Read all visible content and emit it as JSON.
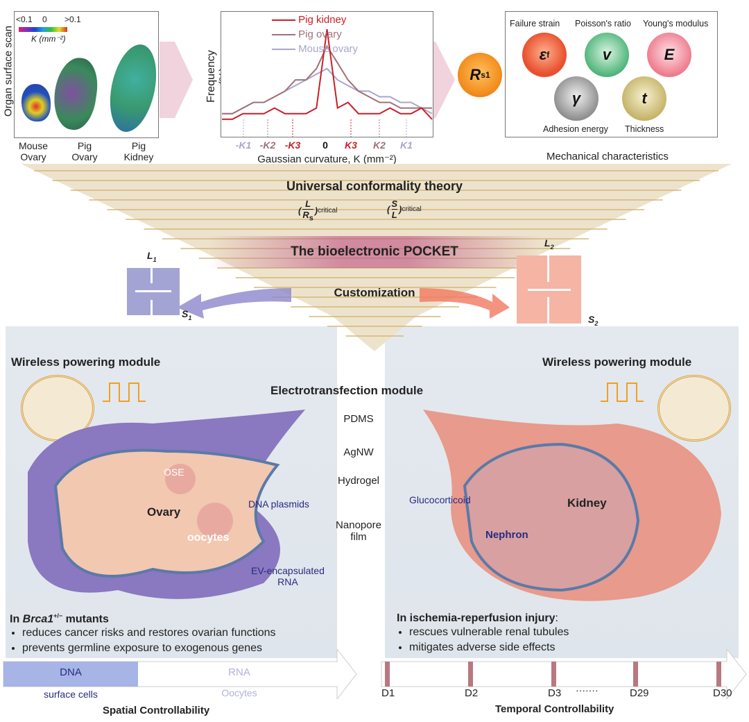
{
  "scan_panel": {
    "axis_label": "Organ surface scan",
    "colorbar": {
      "min": "<0.1",
      "mid": "0",
      "max": ">0.1",
      "unit": "K (mm⁻²)"
    },
    "organs": [
      "Mouse\nOvary",
      "Pig\nOvary",
      "Pig\nKidney"
    ]
  },
  "chart_data": {
    "type": "line",
    "ylabel": "Frequency (%)",
    "xlabel": "Gaussian curvature, K (mm⁻²)",
    "tick_labels": [
      "-K1",
      "-K2",
      "-K3",
      "0",
      "K3",
      "K2",
      "K1"
    ],
    "series": [
      {
        "name": "Pig kidney",
        "color": "#c81e28",
        "values": [
          2,
          2,
          3,
          3,
          3,
          4,
          3,
          3,
          3,
          4,
          18,
          4,
          5,
          3,
          3,
          3,
          4,
          3,
          3,
          4,
          2
        ]
      },
      {
        "name": "Pig ovary",
        "color": "#a07078",
        "values": [
          3,
          3,
          4,
          5,
          5,
          6,
          7,
          9,
          9,
          11,
          15,
          12,
          9,
          7,
          6,
          5,
          5,
          4,
          4,
          4,
          4
        ]
      },
      {
        "name": "Mouse ovary",
        "color": "#a8a6cc",
        "values": [
          3,
          3,
          4,
          5,
          5,
          6,
          7,
          8,
          9,
          10,
          11,
          9,
          8,
          7,
          7,
          6,
          6,
          5,
          5,
          4,
          3
        ]
      }
    ]
  },
  "rs1": {
    "label": "R",
    "sub": "s1",
    "color": "#f39020"
  },
  "mechanical": {
    "caption": "Mechanical characteristics",
    "items": [
      {
        "name": "Failure strain",
        "symbol": "ε",
        "sub": "f",
        "color": "#e8502e"
      },
      {
        "name": "Poisson's ratio",
        "symbol": "v",
        "sub": "",
        "color": "#4fb47a"
      },
      {
        "name": "Young's modulus",
        "symbol": "E",
        "sub": "",
        "color": "#ee7a8c"
      },
      {
        "name": "Adhesion energy",
        "symbol": "γ",
        "sub": "",
        "color": "#8e8e8e"
      },
      {
        "name": "Thickness",
        "symbol": "t",
        "sub": "",
        "color": "#c4b468"
      }
    ]
  },
  "theory": {
    "title": "Universal conformality theory",
    "ratio1": {
      "num": "L",
      "den": "R",
      "den_sub": "s",
      "suffix": "critical"
    },
    "ratio2": {
      "num": "S",
      "den": "L",
      "suffix": "critical"
    },
    "pocket": "The bioelectronic POCKET",
    "customization": "Customization"
  },
  "devices": {
    "left": {
      "L": "L",
      "L_sub": "1",
      "S": "S",
      "S_sub": "1",
      "color": "#a4a4d4"
    },
    "right": {
      "L": "L",
      "L_sub": "2",
      "S": "S",
      "S_sub": "2",
      "color": "#f6b4a4"
    }
  },
  "left_panel": {
    "title": "Wireless powering module",
    "organ": "Ovary",
    "labels": {
      "ose": "OSE",
      "dna": "DNA plasmids",
      "oocytes": "oocytes",
      "ev": "EV-encapsulated\nRNA"
    },
    "heading_pre": "In ",
    "heading_gene": "Brca1",
    "heading_sup": "+/−",
    "heading_post": " mutants",
    "bullets": [
      "reduces cancer risks and restores ovarian functions",
      "prevents germline exposure to exogenous genes"
    ]
  },
  "center": {
    "title": "Electrotransfection module",
    "layers": [
      "PDMS",
      "AgNW",
      "Hydrogel",
      "Nanopore\nfilm"
    ]
  },
  "right_panel": {
    "title": "Wireless powering module",
    "organ": "Kidney",
    "labels": {
      "gluco": "Glucocorticoid",
      "nephron": "Nephron"
    },
    "heading": "In ischemia-reperfusion injury",
    "heading_post": ":",
    "bullets": [
      "rescues vulnerable renal tubules",
      "mitigates adverse side effects"
    ]
  },
  "spatial": {
    "dna": "DNA",
    "rna": "RNA",
    "surface": "surface cells",
    "oocytes": "Oocytes",
    "caption": "Spatial Controllability"
  },
  "temporal": {
    "days": [
      "D1",
      "D2",
      "D3",
      "D29",
      "D30"
    ],
    "ellipsis": "·······",
    "caption": "Temporal Controllability"
  }
}
